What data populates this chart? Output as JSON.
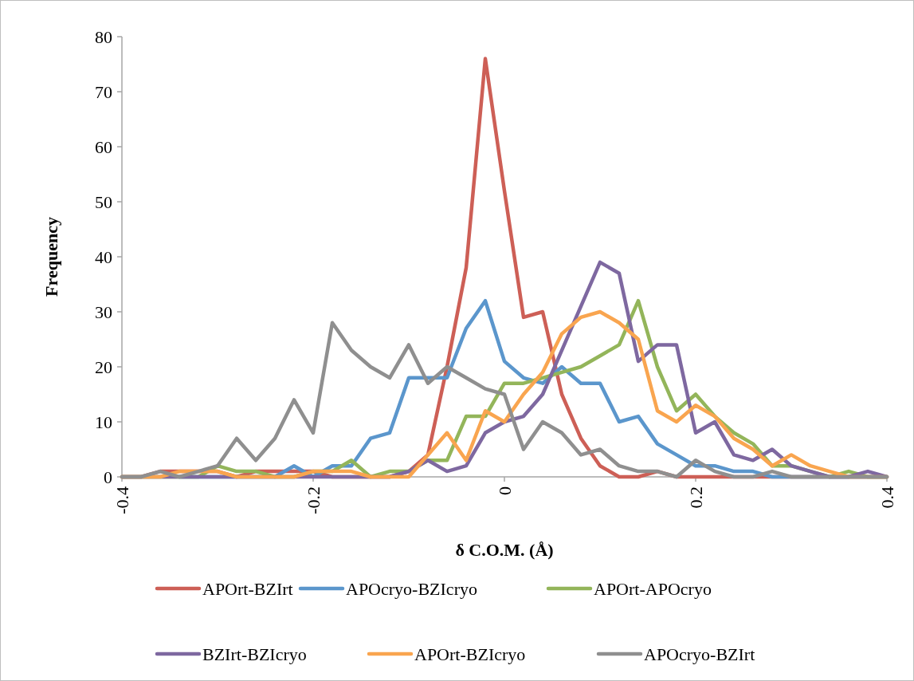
{
  "chart_data": {
    "type": "line",
    "xlabel": "δ C.O.M. (Å)",
    "ylabel": "Frequency",
    "x": [
      -0.4,
      -0.38,
      -0.36,
      -0.34,
      -0.32,
      -0.3,
      -0.28,
      -0.26,
      -0.24,
      -0.22,
      -0.2,
      -0.18,
      -0.16,
      -0.14,
      -0.12,
      -0.1,
      -0.08,
      -0.06,
      -0.04,
      -0.02,
      0,
      0.02,
      0.04,
      0.06,
      0.08,
      0.1,
      0.12,
      0.14,
      0.16,
      0.18,
      0.2,
      0.22,
      0.24,
      0.26,
      0.28,
      0.3,
      0.32,
      0.34,
      0.36,
      0.38,
      0.4
    ],
    "series": [
      {
        "name": "APOrt-BZIrt",
        "color": "#cd5f56",
        "values": [
          0,
          0,
          1,
          1,
          1,
          1,
          0,
          1,
          1,
          1,
          1,
          0,
          0,
          0,
          0,
          1,
          4,
          20,
          38,
          76,
          52,
          29,
          30,
          15,
          7,
          2,
          0,
          0,
          1,
          0,
          0,
          0,
          0,
          0,
          0,
          0,
          0,
          0,
          0,
          0,
          0
        ]
      },
      {
        "name": "APOcryo-BZIcryo",
        "color": "#5b96cc",
        "values": [
          null,
          null,
          null,
          0,
          0,
          0,
          0,
          0,
          0,
          2,
          0,
          2,
          2,
          7,
          8,
          18,
          18,
          18,
          27,
          32,
          21,
          18,
          17,
          20,
          17,
          17,
          10,
          11,
          6,
          4,
          2,
          2,
          1,
          1,
          0,
          0,
          0,
          0,
          0,
          0,
          0
        ]
      },
      {
        "name": "APOrt-APOcryo",
        "color": "#93b55a",
        "values": [
          0,
          0,
          0,
          0,
          0,
          2,
          1,
          1,
          0,
          0,
          1,
          1,
          3,
          0,
          1,
          1,
          3,
          3,
          11,
          11,
          17,
          17,
          18,
          19,
          20,
          22,
          24,
          32,
          20,
          12,
          15,
          11,
          8,
          6,
          2,
          2,
          1,
          0,
          1,
          0,
          0
        ]
      },
      {
        "name": "BZIrt-BZIcryo",
        "color": "#7e68a0",
        "values": [
          0,
          0,
          0,
          0,
          0,
          0,
          0,
          0,
          0,
          0,
          0,
          0,
          0,
          0,
          0,
          1,
          3,
          1,
          2,
          8,
          10,
          11,
          15,
          23,
          31,
          39,
          37,
          21,
          24,
          24,
          8,
          10,
          4,
          3,
          5,
          2,
          1,
          0,
          0,
          1,
          0
        ]
      },
      {
        "name": "APOrt-BZIcryo",
        "color": "#f9a54f",
        "values": [
          0,
          0,
          0,
          1,
          1,
          1,
          0,
          0,
          0,
          0,
          1,
          1,
          1,
          0,
          0,
          0,
          4,
          8,
          3,
          12,
          10,
          15,
          19,
          26,
          29,
          30,
          28,
          25,
          12,
          10,
          13,
          11,
          7,
          5,
          2,
          4,
          2,
          1,
          0,
          0,
          0
        ]
      },
      {
        "name": "APOcryo-BZIrt",
        "color": "#8f8f8f",
        "values": [
          0,
          0,
          1,
          0,
          1,
          2,
          7,
          3,
          7,
          14,
          8,
          28,
          23,
          20,
          18,
          24,
          17,
          20,
          18,
          16,
          15,
          5,
          10,
          8,
          4,
          5,
          2,
          1,
          1,
          0,
          3,
          1,
          0,
          0,
          1,
          0,
          0,
          0,
          0,
          0,
          0
        ]
      }
    ],
    "xlim": [
      -0.4,
      0.4
    ],
    "xticks": [
      -0.4,
      -0.2,
      0,
      0.2,
      0.4
    ],
    "ylim": [
      0,
      80
    ],
    "yticks": [
      0,
      10,
      20,
      30,
      40,
      50,
      60,
      70,
      80
    ],
    "grid": false,
    "legend": "bottom",
    "marker": "none",
    "line_style": "solid"
  }
}
